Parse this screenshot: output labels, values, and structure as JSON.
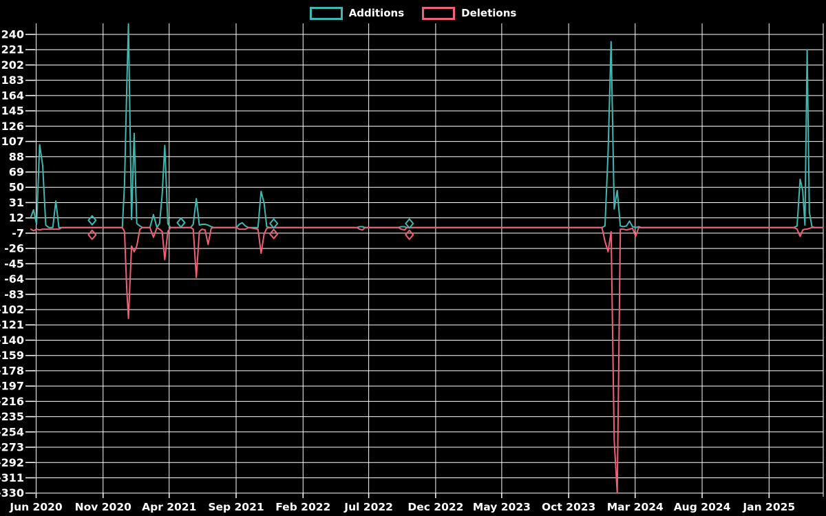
{
  "legend": {
    "additions_label": "Additions",
    "deletions_label": "Deletions"
  },
  "colors": {
    "additions": "#3fb8b1",
    "deletions": "#f06078",
    "grid": "#ffffff",
    "text": "#ffffff",
    "background": "#000000"
  },
  "chart_data": {
    "type": "line",
    "title": "",
    "xlabel": "",
    "ylabel": "",
    "grid": true,
    "legend_position": "top-center",
    "y_axis": {
      "max": 240,
      "min": -330,
      "step": 19,
      "ticks": [
        240,
        221,
        202,
        183,
        164,
        145,
        126,
        107,
        88,
        69,
        50,
        31,
        12,
        -7,
        -26,
        -45,
        -64,
        -83,
        -102,
        -121,
        -140,
        -159,
        -178,
        -197,
        -216,
        -235,
        -254,
        -273,
        -292,
        -311,
        -330
      ]
    },
    "x_axis": {
      "tick_labels": [
        {
          "label": "Jun 2020",
          "date": "2020-06-01"
        },
        {
          "label": "Nov 2020",
          "date": "2020-11-01"
        },
        {
          "label": "Apr 2021",
          "date": "2021-04-01"
        },
        {
          "label": "Sep 2021",
          "date": "2021-09-01"
        },
        {
          "label": "Feb 2022",
          "date": "2022-02-01"
        },
        {
          "label": "Jul 2022",
          "date": "2022-07-01"
        },
        {
          "label": "Dec 2022",
          "date": "2022-12-01"
        },
        {
          "label": "May 2023",
          "date": "2023-05-01"
        },
        {
          "label": "Oct 2023",
          "date": "2023-10-01"
        },
        {
          "label": "Mar 2024",
          "date": "2024-03-01"
        },
        {
          "label": "Aug 2024",
          "date": "2024-08-01"
        },
        {
          "label": "Jan 2025",
          "date": "2025-01-01"
        }
      ],
      "start_date": "2020-05-20",
      "end_date": "2025-05-04"
    },
    "series": [
      {
        "name": "Additions",
        "color_key": "additions",
        "points": [
          [
            "2020-05-20",
            13
          ],
          [
            "2020-05-26",
            22
          ],
          [
            "2020-06-02",
            4
          ],
          [
            "2020-06-09",
            103
          ],
          [
            "2020-06-16",
            77
          ],
          [
            "2020-06-23",
            3
          ],
          [
            "2020-06-30",
            0
          ],
          [
            "2020-07-09",
            0
          ],
          [
            "2020-07-16",
            33
          ],
          [
            "2020-07-23",
            0
          ],
          [
            "2020-12-15",
            0
          ],
          [
            "2020-12-20",
            54
          ],
          [
            "2020-12-25",
            172
          ],
          [
            "2020-12-29",
            253
          ],
          [
            "2021-01-05",
            10
          ],
          [
            "2021-01-11",
            117
          ],
          [
            "2021-01-17",
            5
          ],
          [
            "2021-01-24",
            2
          ],
          [
            "2021-01-30",
            0
          ],
          [
            "2021-02-16",
            0
          ],
          [
            "2021-02-24",
            16
          ],
          [
            "2021-03-04",
            0
          ],
          [
            "2021-03-10",
            5
          ],
          [
            "2021-03-16",
            41
          ],
          [
            "2021-03-22",
            102
          ],
          [
            "2021-03-29",
            5
          ],
          [
            "2021-04-04",
            0
          ],
          [
            "2021-05-20",
            0
          ],
          [
            "2021-05-26",
            4
          ],
          [
            "2021-06-02",
            36
          ],
          [
            "2021-06-09",
            3
          ],
          [
            "2021-06-15",
            4
          ],
          [
            "2021-06-22",
            4
          ],
          [
            "2021-06-29",
            3
          ],
          [
            "2021-07-06",
            1
          ],
          [
            "2021-07-12",
            0
          ],
          [
            "2021-09-02",
            0
          ],
          [
            "2021-09-08",
            4
          ],
          [
            "2021-09-15",
            6
          ],
          [
            "2021-09-22",
            2
          ],
          [
            "2021-09-29",
            0
          ],
          [
            "2021-10-21",
            0
          ],
          [
            "2021-10-28",
            45
          ],
          [
            "2021-11-04",
            30
          ],
          [
            "2021-11-10",
            1
          ],
          [
            "2021-11-16",
            0
          ],
          [
            "2022-06-04",
            0
          ],
          [
            "2022-06-10",
            1
          ],
          [
            "2022-06-17",
            1
          ],
          [
            "2022-06-23",
            0
          ],
          [
            "2022-09-07",
            0
          ],
          [
            "2022-09-13",
            1
          ],
          [
            "2022-09-21",
            1
          ],
          [
            "2022-09-26",
            0
          ],
          [
            "2023-12-16",
            0
          ],
          [
            "2023-12-23",
            2
          ],
          [
            "2023-12-30",
            93
          ],
          [
            "2024-01-06",
            231
          ],
          [
            "2024-01-13",
            23
          ],
          [
            "2024-01-20",
            46
          ],
          [
            "2024-01-27",
            2
          ],
          [
            "2024-02-03",
            1
          ],
          [
            "2024-02-10",
            2
          ],
          [
            "2024-02-17",
            8
          ],
          [
            "2024-02-24",
            1
          ],
          [
            "2024-03-02",
            0
          ],
          [
            "2024-03-09",
            1
          ],
          [
            "2024-03-15",
            0
          ],
          [
            "2025-02-27",
            0
          ],
          [
            "2025-03-06",
            2
          ],
          [
            "2025-03-13",
            60
          ],
          [
            "2025-03-19",
            46
          ],
          [
            "2025-03-24",
            3
          ],
          [
            "2025-03-29",
            221
          ],
          [
            "2025-04-03",
            19
          ],
          [
            "2025-04-09",
            1
          ],
          [
            "2025-04-15",
            0
          ],
          [
            "2025-05-04",
            0
          ]
        ]
      },
      {
        "name": "Deletions",
        "color_key": "deletions",
        "points": [
          [
            "2020-05-20",
            -2
          ],
          [
            "2020-05-26",
            -4
          ],
          [
            "2020-06-02",
            -2
          ],
          [
            "2020-06-09",
            -3
          ],
          [
            "2020-06-16",
            -2
          ],
          [
            "2020-06-23",
            -2
          ],
          [
            "2020-06-30",
            -2
          ],
          [
            "2020-07-09",
            -2
          ],
          [
            "2020-07-16",
            -2
          ],
          [
            "2020-07-23",
            -2
          ],
          [
            "2020-07-30",
            0
          ],
          [
            "2020-12-15",
            0
          ],
          [
            "2020-12-20",
            -5
          ],
          [
            "2020-12-25",
            -76
          ],
          [
            "2020-12-29",
            -113
          ],
          [
            "2021-01-05",
            -23
          ],
          [
            "2021-01-11",
            -30
          ],
          [
            "2021-01-17",
            -23
          ],
          [
            "2021-01-24",
            -2
          ],
          [
            "2021-01-30",
            0
          ],
          [
            "2021-02-16",
            0
          ],
          [
            "2021-02-24",
            -12
          ],
          [
            "2021-03-04",
            0
          ],
          [
            "2021-03-10",
            -2
          ],
          [
            "2021-03-16",
            -5
          ],
          [
            "2021-03-22",
            -40
          ],
          [
            "2021-03-29",
            -5
          ],
          [
            "2021-04-04",
            0
          ],
          [
            "2021-05-20",
            0
          ],
          [
            "2021-05-26",
            -2
          ],
          [
            "2021-06-02",
            -62
          ],
          [
            "2021-06-09",
            -5
          ],
          [
            "2021-06-15",
            -2
          ],
          [
            "2021-06-22",
            -3
          ],
          [
            "2021-06-29",
            -21
          ],
          [
            "2021-07-06",
            -1
          ],
          [
            "2021-07-12",
            0
          ],
          [
            "2021-09-02",
            0
          ],
          [
            "2021-09-08",
            -2
          ],
          [
            "2021-09-15",
            -2
          ],
          [
            "2021-09-22",
            -2
          ],
          [
            "2021-09-29",
            0
          ],
          [
            "2021-10-21",
            -2
          ],
          [
            "2021-10-28",
            -32
          ],
          [
            "2021-11-04",
            -8
          ],
          [
            "2021-11-10",
            -1
          ],
          [
            "2021-11-16",
            0
          ],
          [
            "2022-06-04",
            0
          ],
          [
            "2022-06-10",
            -2
          ],
          [
            "2022-06-17",
            -3
          ],
          [
            "2022-06-23",
            0
          ],
          [
            "2022-09-07",
            0
          ],
          [
            "2022-09-13",
            -2
          ],
          [
            "2022-09-21",
            -3
          ],
          [
            "2022-09-26",
            0
          ],
          [
            "2023-12-16",
            0
          ],
          [
            "2023-12-23",
            -17
          ],
          [
            "2023-12-30",
            -30
          ],
          [
            "2024-01-06",
            -5
          ],
          [
            "2024-01-13",
            -264
          ],
          [
            "2024-01-20",
            -330
          ],
          [
            "2024-01-27",
            -2
          ],
          [
            "2024-02-03",
            -2
          ],
          [
            "2024-02-10",
            -3
          ],
          [
            "2024-02-17",
            -2
          ],
          [
            "2024-02-24",
            -1
          ],
          [
            "2024-03-02",
            -11
          ],
          [
            "2024-03-09",
            0
          ],
          [
            "2025-02-27",
            0
          ],
          [
            "2025-03-06",
            -2
          ],
          [
            "2025-03-13",
            -11
          ],
          [
            "2025-03-19",
            -3
          ],
          [
            "2025-03-24",
            -2
          ],
          [
            "2025-03-29",
            -2
          ],
          [
            "2025-04-03",
            -1
          ],
          [
            "2025-04-09",
            0
          ],
          [
            "2025-05-04",
            0
          ]
        ]
      }
    ],
    "isolated_points": [
      {
        "series": "Additions",
        "date": "2020-10-07",
        "value": 9
      },
      {
        "series": "Deletions",
        "date": "2020-10-07",
        "value": -9
      },
      {
        "series": "Additions",
        "date": "2021-04-28",
        "value": 6
      },
      {
        "series": "Additions",
        "date": "2021-11-26",
        "value": 5
      },
      {
        "series": "Deletions",
        "date": "2021-11-26",
        "value": -8
      },
      {
        "series": "Additions",
        "date": "2022-10-02",
        "value": 5
      },
      {
        "series": "Deletions",
        "date": "2022-10-02",
        "value": -9
      }
    ]
  }
}
